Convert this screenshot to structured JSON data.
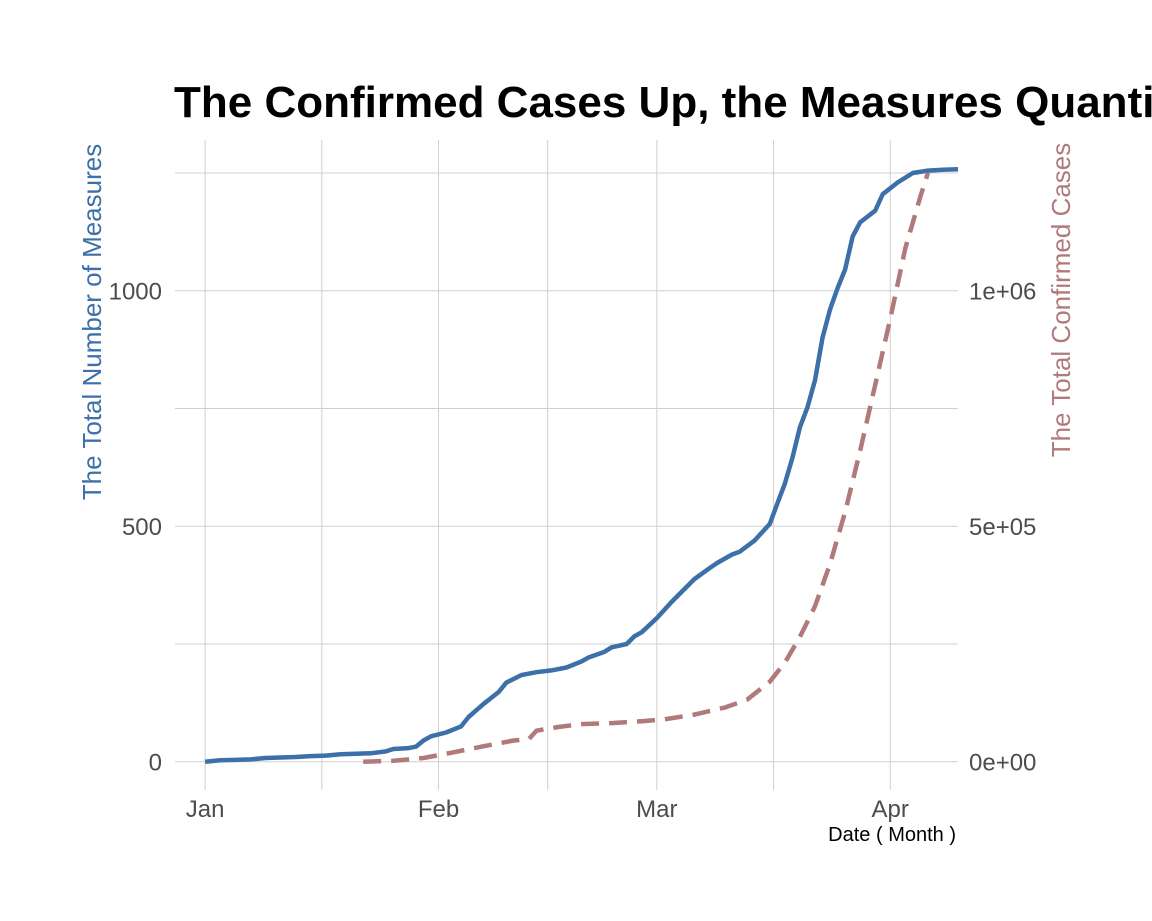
{
  "chart_data": {
    "type": "line",
    "title": "The Confirmed Cases Up, the Measures Quantity Up",
    "xlabel": "Date ( Month )",
    "ylabel_left": "The Total Number of Measures",
    "ylabel_right": "The Total Confirmed Cases",
    "x_ticks": [
      "Jan",
      "Feb",
      "Mar",
      "Apr"
    ],
    "x_tick_dates": [
      "2020-01-01",
      "2020-02-01",
      "2020-03-01",
      "2020-04-01"
    ],
    "x_range": [
      "2019-12-28",
      "2020-04-10"
    ],
    "y_left_ticks": [
      "0",
      "500",
      "1000"
    ],
    "y_left_tick_values": [
      0,
      500,
      1000
    ],
    "y_left_range": [
      -60,
      1320
    ],
    "y_right_ticks": [
      "0e+00",
      "5e+05",
      "1e+06"
    ],
    "y_right_tick_values": [
      0,
      500000,
      1000000
    ],
    "y_right_range": [
      -60000,
      1320000
    ],
    "grid": true,
    "colors": {
      "measures": "#3d6fa8",
      "cases": "#b07a7a"
    },
    "series": [
      {
        "axis": "left",
        "style": "solid",
        "points": [
          [
            "2020-01-01",
            0
          ],
          [
            "2020-01-03",
            3
          ],
          [
            "2020-01-05",
            4
          ],
          [
            "2020-01-07",
            5
          ],
          [
            "2020-01-09",
            8
          ],
          [
            "2020-01-11",
            9
          ],
          [
            "2020-01-13",
            10
          ],
          [
            "2020-01-15",
            12
          ],
          [
            "2020-01-17",
            13
          ],
          [
            "2020-01-19",
            16
          ],
          [
            "2020-01-21",
            17
          ],
          [
            "2020-01-23",
            18
          ],
          [
            "2020-01-25",
            22
          ],
          [
            "2020-01-26",
            27
          ],
          [
            "2020-01-28",
            29
          ],
          [
            "2020-01-29",
            32
          ],
          [
            "2020-01-30",
            45
          ],
          [
            "2020-01-31",
            54
          ],
          [
            "2020-02-02",
            62
          ],
          [
            "2020-02-04",
            75
          ],
          [
            "2020-02-05",
            95
          ],
          [
            "2020-02-07",
            123
          ],
          [
            "2020-02-09",
            148
          ],
          [
            "2020-02-10",
            168
          ],
          [
            "2020-02-12",
            184
          ],
          [
            "2020-02-14",
            190
          ],
          [
            "2020-02-16",
            194
          ],
          [
            "2020-02-18",
            200
          ],
          [
            "2020-02-20",
            213
          ],
          [
            "2020-02-21",
            222
          ],
          [
            "2020-02-23",
            233
          ],
          [
            "2020-02-24",
            243
          ],
          [
            "2020-02-26",
            250
          ],
          [
            "2020-02-27",
            266
          ],
          [
            "2020-02-28",
            275
          ],
          [
            "2020-03-01",
            305
          ],
          [
            "2020-03-03",
            340
          ],
          [
            "2020-03-05",
            372
          ],
          [
            "2020-03-06",
            388
          ],
          [
            "2020-03-08",
            411
          ],
          [
            "2020-03-09",
            422
          ],
          [
            "2020-03-11",
            440
          ],
          [
            "2020-03-12",
            446
          ],
          [
            "2020-03-14",
            470
          ],
          [
            "2020-03-16",
            505
          ],
          [
            "2020-03-17",
            548
          ],
          [
            "2020-03-18",
            590
          ],
          [
            "2020-03-19",
            645
          ],
          [
            "2020-03-20",
            710
          ],
          [
            "2020-03-21",
            752
          ],
          [
            "2020-03-22",
            810
          ],
          [
            "2020-03-23",
            900
          ],
          [
            "2020-03-24",
            960
          ],
          [
            "2020-03-25",
            1005
          ],
          [
            "2020-03-26",
            1045
          ],
          [
            "2020-03-27",
            1115
          ],
          [
            "2020-03-28",
            1145
          ],
          [
            "2020-03-30",
            1170
          ],
          [
            "2020-03-31",
            1205
          ],
          [
            "2020-04-02",
            1230
          ],
          [
            "2020-04-04",
            1250
          ],
          [
            "2020-04-06",
            1255
          ],
          [
            "2020-04-08",
            1257
          ],
          [
            "2020-04-10",
            1258
          ]
        ]
      },
      {
        "axis": "right",
        "style": "dashed",
        "points": [
          [
            "2020-01-22",
            0
          ],
          [
            "2020-01-26",
            2000
          ],
          [
            "2020-01-30",
            8000
          ],
          [
            "2020-02-03",
            20000
          ],
          [
            "2020-02-07",
            33000
          ],
          [
            "2020-02-11",
            45000
          ],
          [
            "2020-02-13",
            48000
          ],
          [
            "2020-02-14",
            66000
          ],
          [
            "2020-02-17",
            74000
          ],
          [
            "2020-02-20",
            80000
          ],
          [
            "2020-02-24",
            82000
          ],
          [
            "2020-02-28",
            86000
          ],
          [
            "2020-03-02",
            90000
          ],
          [
            "2020-03-06",
            100000
          ],
          [
            "2020-03-10",
            115000
          ],
          [
            "2020-03-13",
            132000
          ],
          [
            "2020-03-16",
            170000
          ],
          [
            "2020-03-18",
            210000
          ],
          [
            "2020-03-20",
            265000
          ],
          [
            "2020-03-22",
            330000
          ],
          [
            "2020-03-24",
            420000
          ],
          [
            "2020-03-26",
            530000
          ],
          [
            "2020-03-28",
            660000
          ],
          [
            "2020-03-30",
            800000
          ],
          [
            "2020-04-01",
            940000
          ],
          [
            "2020-04-03",
            1090000
          ],
          [
            "2020-04-05",
            1200000
          ],
          [
            "2020-04-06",
            1250000
          ]
        ]
      }
    ]
  }
}
